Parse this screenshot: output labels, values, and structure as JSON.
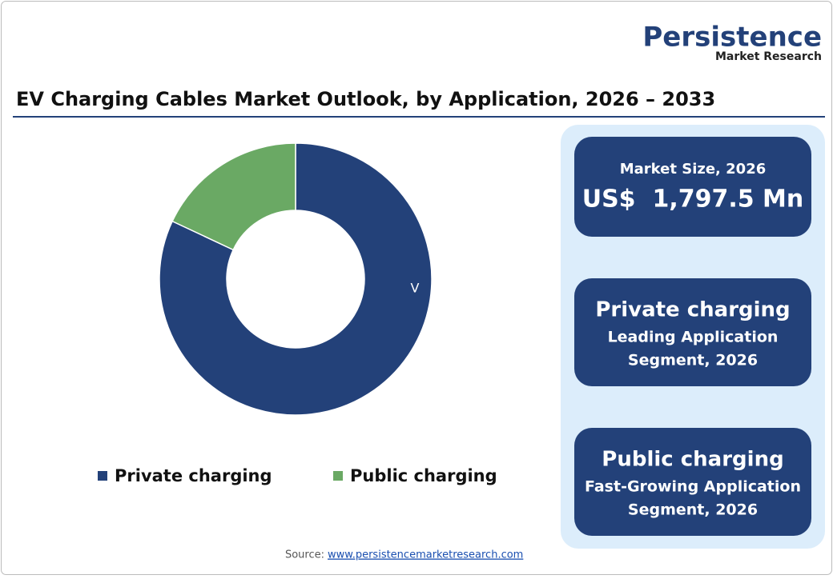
{
  "logo": {
    "name": "Persistence",
    "tagline": "Market Research"
  },
  "chart_data": {
    "type": "donut",
    "title": "EV Charging Cables Market Outlook, by Application, 2026 – 2033",
    "categories": [
      "Private charging",
      "Public charging"
    ],
    "values": [
      82,
      18
    ],
    "colors": [
      "#234179",
      "#6aa964"
    ],
    "annotation": "V",
    "legend": "bottom"
  },
  "panel": {
    "cards": [
      {
        "heading": "Market Size, 2026",
        "value": "US$  1,797.5 Mn"
      },
      {
        "heading": "Private charging",
        "lines": [
          "Leading Application",
          "Segment, 2026"
        ]
      },
      {
        "heading": "Public charging",
        "lines": [
          "Fast-Growing Application",
          "Segment, 2026"
        ]
      }
    ]
  },
  "source": {
    "label": "Source:",
    "link": "www.persistencemarketresearch.com"
  }
}
